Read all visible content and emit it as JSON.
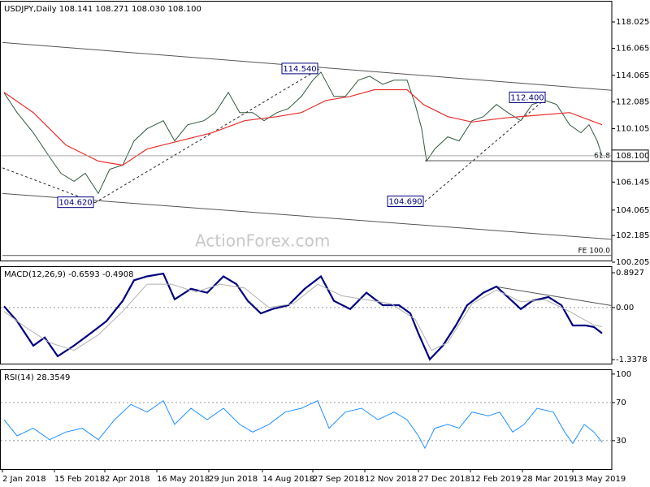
{
  "watermark": "ActionForex.com",
  "chart_data": [
    {
      "type": "line",
      "title": "USDJPY,Daily  108.141 108.271 108.030 108.100",
      "xlim": [
        0,
        375
      ],
      "ylim": [
        100.205,
        119.65
      ],
      "yticks": [
        118.025,
        116.065,
        114.065,
        112.085,
        110.105,
        106.145,
        104.065,
        102.185,
        100.205
      ],
      "last": {
        "value": 108.1,
        "label": "108.100"
      },
      "series": [
        {
          "color": "#2f5a3c",
          "width": 1,
          "x": [
            1,
            9,
            19,
            29,
            36,
            44,
            51,
            59,
            66,
            74,
            81,
            89,
            99,
            106,
            114,
            124,
            131,
            139,
            146,
            154,
            161,
            169,
            176,
            184,
            191,
            196,
            204,
            211,
            219,
            226,
            234,
            241,
            249,
            254,
            258,
            261,
            266,
            274,
            281,
            289,
            296,
            304,
            311,
            319,
            326,
            334,
            341,
            349,
            356,
            361,
            366,
            369
          ],
          "values": [
            112.77,
            111.3,
            109.8,
            108.0,
            106.8,
            106.2,
            106.8,
            105.3,
            107.1,
            107.4,
            109.2,
            110.1,
            110.7,
            109.2,
            110.4,
            110.7,
            111.3,
            112.8,
            111.3,
            111.3,
            110.7,
            111.3,
            111.6,
            112.5,
            113.7,
            114.3,
            112.5,
            112.5,
            113.7,
            114.0,
            113.4,
            113.7,
            113.7,
            111.9,
            110.1,
            107.7,
            108.6,
            109.5,
            109.2,
            110.7,
            111.0,
            111.9,
            111.3,
            110.7,
            111.9,
            112.2,
            111.9,
            110.4,
            109.8,
            110.4,
            109.2,
            108.1
          ]
        },
        {
          "color": "#e8302c",
          "width": 1.2,
          "x": [
            1,
            19,
            39,
            59,
            74,
            89,
            109,
            129,
            149,
            169,
            184,
            199,
            214,
            229,
            249,
            259,
            274,
            289,
            309,
            329,
            349,
            369
          ],
          "values": [
            112.8,
            111.3,
            108.9,
            107.7,
            107.4,
            108.6,
            109.2,
            109.8,
            110.7,
            111.0,
            111.3,
            112.2,
            112.5,
            113.0,
            113.0,
            111.9,
            111.0,
            110.6,
            110.9,
            111.1,
            111.3,
            110.4
          ]
        }
      ],
      "lines": [
        {
          "x": [
            0,
            375
          ],
          "y": [
            116.5,
            112.95
          ],
          "dash": false
        },
        {
          "x": [
            0,
            375
          ],
          "y": [
            105.3,
            101.9
          ],
          "dash": false
        },
        {
          "x": [
            0,
            57
          ],
          "y": [
            107.2,
            104.62
          ],
          "dash": true
        },
        {
          "x": [
            57,
            195
          ],
          "y": [
            104.62,
            114.54
          ],
          "dash": true
        },
        {
          "x": [
            260,
            335
          ],
          "y": [
            104.69,
            112.4
          ],
          "dash": true
        },
        {
          "x": [
            260,
            375
          ],
          "y": [
            107.73,
            107.73
          ],
          "dash": false,
          "label": "61.8"
        },
        {
          "x": [
            0,
            375
          ],
          "y": [
            100.7,
            100.7
          ],
          "dash": false,
          "label": "FE 100.0"
        }
      ],
      "annotations": [
        {
          "text": "114.540",
          "x": 195,
          "y": 114.54
        },
        {
          "text": "104.620",
          "x": 57,
          "y": 104.62
        },
        {
          "text": "112.400",
          "x": 335,
          "y": 112.4
        },
        {
          "text": "104.690",
          "x": 260,
          "y": 104.69
        }
      ]
    },
    {
      "type": "line",
      "title": "MACD(12,26,9) -0.6593 -0.4908",
      "xlim": [
        0,
        375
      ],
      "ylim": [
        -1.44,
        1.06
      ],
      "yticks": [
        0.8927,
        {
          "value": 0,
          "label": "0.00"
        },
        -1.3378
      ],
      "levels": [
        0
      ],
      "series": [
        {
          "color": "#00007f",
          "width": 2.2,
          "x": [
            1,
            9,
            19,
            26,
            34,
            44,
            54,
            64,
            74,
            81,
            89,
            99,
            106,
            116,
            126,
            136,
            144,
            151,
            159,
            166,
            176,
            186,
            196,
            204,
            214,
            224,
            234,
            244,
            251,
            256,
            263,
            271,
            279,
            286,
            296,
            304,
            311,
            319,
            326,
            336,
            344,
            351,
            359,
            364,
            369
          ],
          "values": [
            0.03,
            -0.35,
            -0.98,
            -0.77,
            -1.25,
            -0.98,
            -0.67,
            -0.35,
            0.17,
            0.7,
            0.8,
            0.87,
            0.21,
            0.48,
            0.38,
            0.8,
            0.6,
            0.17,
            -0.15,
            -0.04,
            0.06,
            0.48,
            0.8,
            0.17,
            -0.04,
            0.38,
            0.06,
            0.06,
            -0.15,
            -0.67,
            -1.33,
            -0.98,
            -0.46,
            0.06,
            0.38,
            0.54,
            0.27,
            -0.04,
            0.17,
            0.27,
            0.06,
            -0.46,
            -0.46,
            -0.5,
            -0.66
          ]
        },
        {
          "color": "#b0b0b0",
          "width": 1,
          "x": [
            1,
            14,
            29,
            44,
            59,
            74,
            89,
            104,
            119,
            134,
            149,
            164,
            179,
            194,
            209,
            224,
            239,
            254,
            264,
            274,
            289,
            304,
            319,
            334,
            349,
            364,
            369
          ],
          "values": [
            -0.1,
            -0.5,
            -0.9,
            -1.1,
            -0.7,
            -0.1,
            0.6,
            0.6,
            0.4,
            0.6,
            0.5,
            0.0,
            0.1,
            0.6,
            0.3,
            0.2,
            0.1,
            -0.3,
            -1.1,
            -0.9,
            0.1,
            0.45,
            0.15,
            0.2,
            -0.1,
            -0.45,
            -0.49
          ]
        }
      ],
      "lines": [
        {
          "x": [
            303,
            375
          ],
          "y": [
            0.54,
            0.05
          ],
          "dash": false
        }
      ]
    },
    {
      "type": "line",
      "title": "RSI(14) 28.3549",
      "xlim": [
        0,
        375
      ],
      "ylim": [
        0,
        105
      ],
      "yticks": [
        100,
        70,
        30
      ],
      "levels": [
        70,
        30
      ],
      "xticks": [
        {
          "value": 0,
          "label": "2 Jan 2018"
        },
        {
          "value": 32,
          "label": "15 Feb 2018"
        },
        {
          "value": 63,
          "label": "2 Apr 2018"
        },
        {
          "value": 95,
          "label": "16 May 2018"
        },
        {
          "value": 127,
          "label": "29 Jun 2018"
        },
        {
          "value": 160,
          "label": "14 Aug 2018"
        },
        {
          "value": 191,
          "label": "27 Sep 2018"
        },
        {
          "value": 223,
          "label": "12 Nov 2018"
        },
        {
          "value": 256,
          "label": "27 Dec 2018"
        },
        {
          "value": 288,
          "label": "12 Feb 2019"
        },
        {
          "value": 320,
          "label": "28 Mar 2019"
        },
        {
          "value": 351,
          "label": "13 May 2019"
        }
      ],
      "series": [
        {
          "color": "#1e90ff",
          "width": 1,
          "x": [
            1,
            9,
            19,
            29,
            39,
            49,
            59,
            69,
            79,
            89,
            99,
            106,
            116,
            126,
            136,
            146,
            154,
            164,
            174,
            184,
            194,
            201,
            211,
            221,
            231,
            241,
            249,
            256,
            260,
            266,
            274,
            281,
            289,
            299,
            306,
            314,
            321,
            329,
            339,
            346,
            351,
            358,
            364,
            369
          ],
          "values": [
            52,
            35,
            43,
            31,
            39,
            43,
            31,
            52,
            68,
            60,
            72,
            47,
            64,
            52,
            64,
            47,
            39,
            47,
            60,
            64,
            72,
            43,
            60,
            64,
            52,
            60,
            52,
            35,
            22,
            43,
            47,
            43,
            60,
            56,
            60,
            39,
            47,
            64,
            60,
            39,
            27,
            47,
            39,
            28.35
          ]
        }
      ]
    }
  ]
}
